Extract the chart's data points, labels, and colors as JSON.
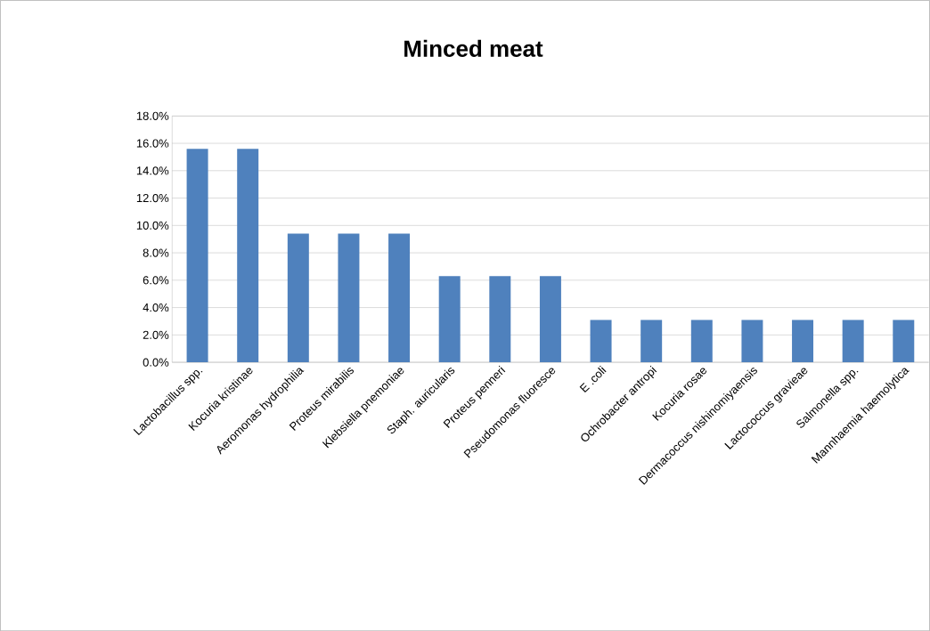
{
  "chart_data": {
    "type": "bar",
    "title": "Minced meat",
    "categories": [
      "Lactobacillus spp.",
      "Kocuria kristinae",
      "Aeromonas hydrophilia",
      "Proteus mirabilis",
      "Klebsiella pnemoniae",
      "Staph. auricularis",
      "Proteus penneri",
      "Pseudomonas fluoresce",
      "E .coli",
      "Ochrobacter antropi",
      "Kocuria rosae",
      "Dermacoccus nishinomiyaensis",
      "Lactococcus gravieae",
      "Salmonella spp.",
      "Mannhaemia haemolytica"
    ],
    "values": [
      15.6,
      15.6,
      9.4,
      9.4,
      9.4,
      6.3,
      6.3,
      6.3,
      3.1,
      3.1,
      3.1,
      3.1,
      3.1,
      3.1,
      3.1
    ],
    "color": "#4f81bd",
    "ylim": [
      0,
      18
    ],
    "yticks": [
      {
        "value": 0,
        "label": "0.0%"
      },
      {
        "value": 2,
        "label": "2.0%"
      },
      {
        "value": 4,
        "label": "4.0%"
      },
      {
        "value": 6,
        "label": "6.0%"
      },
      {
        "value": 8,
        "label": "8.0%"
      },
      {
        "value": 10,
        "label": "10.0%"
      },
      {
        "value": 12,
        "label": "12.0%"
      },
      {
        "value": 14,
        "label": "14.0%"
      },
      {
        "value": 16,
        "label": "16.0%"
      },
      {
        "value": 18,
        "label": "18.0%"
      }
    ],
    "grid": "y"
  }
}
